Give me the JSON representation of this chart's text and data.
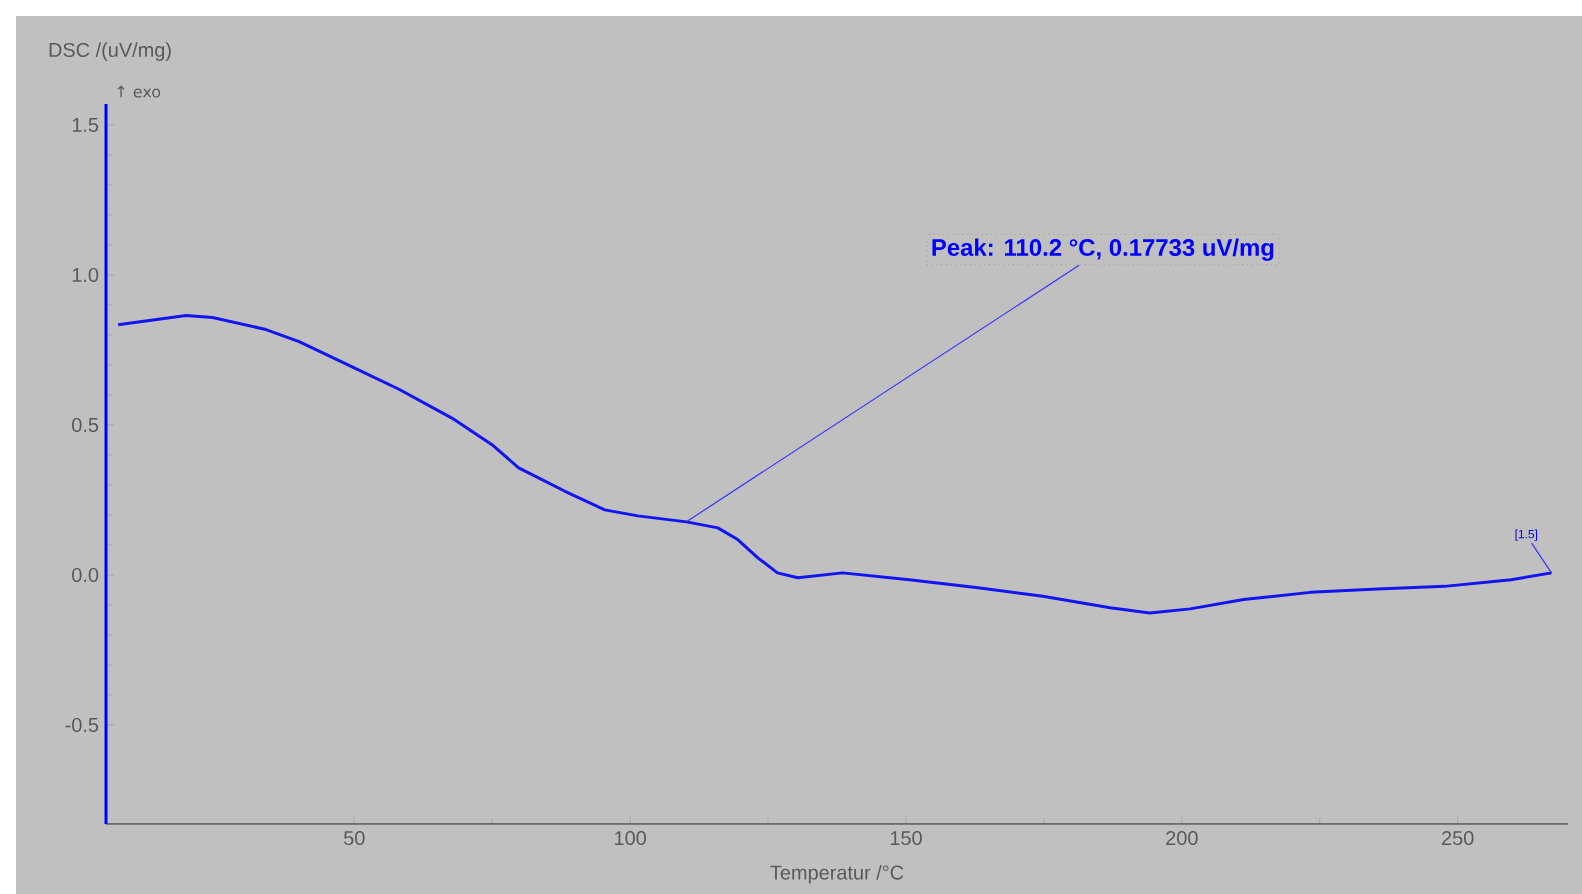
{
  "chart_data": {
    "type": "line",
    "xlabel": "Temperatur /°C",
    "ylabel": "DSC /(uV/mg)",
    "x": [
      7.2,
      19.5,
      24.3,
      34.0,
      40.0,
      50.0,
      58.1,
      67.7,
      74.9,
      79.8,
      88.2,
      95.4,
      101.4,
      110.2,
      115.9,
      119.5,
      123.1,
      126.7,
      130.4,
      138.5,
      150.6,
      162.7,
      174.8,
      187.0,
      194.2,
      201.5,
      211.2,
      223.3,
      235.5,
      247.6,
      259.7,
      267.0
    ],
    "series": [
      {
        "color": "#1414f0",
        "values": [
          0.834,
          0.865,
          0.858,
          0.818,
          0.778,
          0.69,
          0.619,
          0.523,
          0.435,
          0.357,
          0.279,
          0.217,
          0.197,
          0.177,
          0.157,
          0.118,
          0.058,
          0.007,
          -0.009,
          0.007,
          -0.016,
          -0.042,
          -0.071,
          -0.109,
          -0.127,
          -0.113,
          -0.082,
          -0.058,
          -0.047,
          -0.038,
          -0.016,
          0.007
        ]
      }
    ],
    "xlim": [
      5,
      270
    ],
    "ylim": [
      -0.83,
      1.57
    ],
    "xticks": [
      50,
      100,
      150,
      200,
      250
    ],
    "yticks": [
      -0.5,
      {
        "value": 0,
        "label": "0.0"
      },
      0.5,
      {
        "value": 1,
        "label": "1.0"
      },
      1.5
    ],
    "line_style": "solid",
    "annotations": [
      "↑ exo",
      {
        "text": "Peak: 110.2 °C, 0.17733 uV/mg",
        "x": 110.2,
        "y": 0.17733
      },
      {
        "text": "[1.5]",
        "x": 267,
        "y": 0.007
      }
    ]
  }
}
